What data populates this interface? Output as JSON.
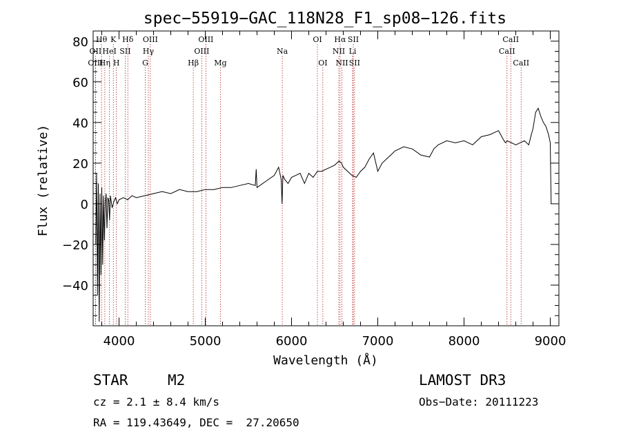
{
  "chart_data": {
    "type": "line",
    "title": "spec−55919−GAC_118N28_F1_sp08−126.fits",
    "xlabel": "Wavelength (Å)",
    "ylabel": "Flux (relative)",
    "xlim": [
      3700,
      9100
    ],
    "ylim": [
      -60,
      85
    ],
    "xticks": [
      4000,
      5000,
      6000,
      7000,
      8000,
      9000
    ],
    "xtick_labels": [
      "4000",
      "5000",
      "6000",
      "7000",
      "8000",
      "9000"
    ],
    "yticks": [
      -40,
      -20,
      0,
      20,
      40,
      60,
      80
    ],
    "ytick_labels": [
      "−40",
      "−20",
      "0",
      "20",
      "40",
      "60",
      "80"
    ],
    "grid": false,
    "series": [
      {
        "name": "spectrum",
        "x": [
          3730,
          3740,
          3750,
          3760,
          3770,
          3780,
          3790,
          3800,
          3810,
          3820,
          3830,
          3840,
          3850,
          3860,
          3870,
          3880,
          3890,
          3900,
          3920,
          3940,
          3960,
          3980,
          4000,
          4050,
          4100,
          4150,
          4200,
          4300,
          4400,
          4500,
          4600,
          4700,
          4800,
          4900,
          5000,
          5100,
          5200,
          5300,
          5400,
          5500,
          5580,
          5590,
          5600,
          5700,
          5800,
          5850,
          5880,
          5890,
          5900,
          5920,
          5960,
          6000,
          6050,
          6100,
          6150,
          6200,
          6250,
          6300,
          6350,
          6400,
          6450,
          6500,
          6550,
          6580,
          6600,
          6650,
          6700,
          6750,
          6800,
          6850,
          6900,
          6950,
          7000,
          7050,
          7100,
          7150,
          7200,
          7300,
          7400,
          7500,
          7600,
          7650,
          7700,
          7800,
          7900,
          8000,
          8100,
          8200,
          8300,
          8400,
          8450,
          8480,
          8500,
          8550,
          8600,
          8650,
          8700,
          8750,
          8780,
          8800,
          8830,
          8860,
          8890,
          8920,
          8950,
          8980,
          9000,
          9005,
          9010
        ],
        "values": [
          -20,
          15,
          -45,
          10,
          -58,
          5,
          -35,
          8,
          -30,
          4,
          -18,
          0,
          5,
          -12,
          3,
          2,
          -8,
          4,
          -2,
          1,
          3,
          0,
          2,
          3,
          2,
          4,
          3,
          4,
          5,
          6,
          5,
          7,
          6,
          6,
          7,
          7,
          8,
          8,
          9,
          10,
          9,
          17,
          8,
          11,
          14,
          18,
          12,
          0,
          14,
          12,
          10,
          13,
          14,
          15,
          10,
          15,
          13,
          16,
          16,
          17,
          18,
          19,
          21,
          20,
          18,
          16,
          14,
          13,
          16,
          18,
          22,
          25,
          16,
          20,
          22,
          24,
          26,
          28,
          27,
          24,
          23,
          27,
          29,
          31,
          30,
          31,
          29,
          33,
          34,
          36,
          32,
          30,
          31,
          30,
          29,
          30,
          31,
          29,
          34,
          37,
          45,
          47,
          43,
          40,
          38,
          34,
          30,
          15,
          0
        ]
      }
    ],
    "lines": [
      {
        "label": "Hθ",
        "x": 3797,
        "row": 1
      },
      {
        "label": "OII",
        "x": 3727,
        "row": 2
      },
      {
        "label": "OIII",
        "x": 3727,
        "row": 3
      },
      {
        "label": "K",
        "x": 3934,
        "row": 1
      },
      {
        "label": "HeI",
        "x": 3889,
        "row": 2
      },
      {
        "label": "Hη",
        "x": 3835,
        "row": 3
      },
      {
        "label": "Hδ",
        "x": 4102,
        "row": 1
      },
      {
        "label": "SII",
        "x": 4072,
        "row": 2
      },
      {
        "label": "H",
        "x": 3969,
        "row": 3
      },
      {
        "label": "OIII",
        "x": 4363,
        "row": 1
      },
      {
        "label": "Hγ",
        "x": 4340,
        "row": 2
      },
      {
        "label": "G",
        "x": 4304,
        "row": 3
      },
      {
        "label": "OIII",
        "x": 5007,
        "row": 1
      },
      {
        "label": "OIII",
        "x": 4959,
        "row": 2
      },
      {
        "label": "Hβ",
        "x": 4861,
        "row": 3
      },
      {
        "label": "Mg",
        "x": 5175,
        "row": 3
      },
      {
        "label": "Na",
        "x": 5893,
        "row": 2
      },
      {
        "label": "OI",
        "x": 6300,
        "row": 1
      },
      {
        "label": "OI",
        "x": 6363,
        "row": 3
      },
      {
        "label": "Hα",
        "x": 6563,
        "row": 1
      },
      {
        "label": "SII",
        "x": 6716,
        "row": 1
      },
      {
        "label": "NII",
        "x": 6548,
        "row": 2
      },
      {
        "label": "Li",
        "x": 6708,
        "row": 2
      },
      {
        "label": "NII",
        "x": 6584,
        "row": 3
      },
      {
        "label": "SII",
        "x": 6731,
        "row": 3
      },
      {
        "label": "CaII",
        "x": 8542,
        "row": 1
      },
      {
        "label": "CaII",
        "x": 8498,
        "row": 2
      },
      {
        "label": "CaII",
        "x": 8662,
        "row": 3
      }
    ]
  },
  "info": {
    "object_class": "STAR",
    "subclass": "M2",
    "survey": "LAMOST DR3",
    "cz": "cz = 2.1 ± 8.4 km/s",
    "obs_date": "Obs−Date: 20111223",
    "coords": "RA = 119.43649, DEC =  27.20650"
  }
}
